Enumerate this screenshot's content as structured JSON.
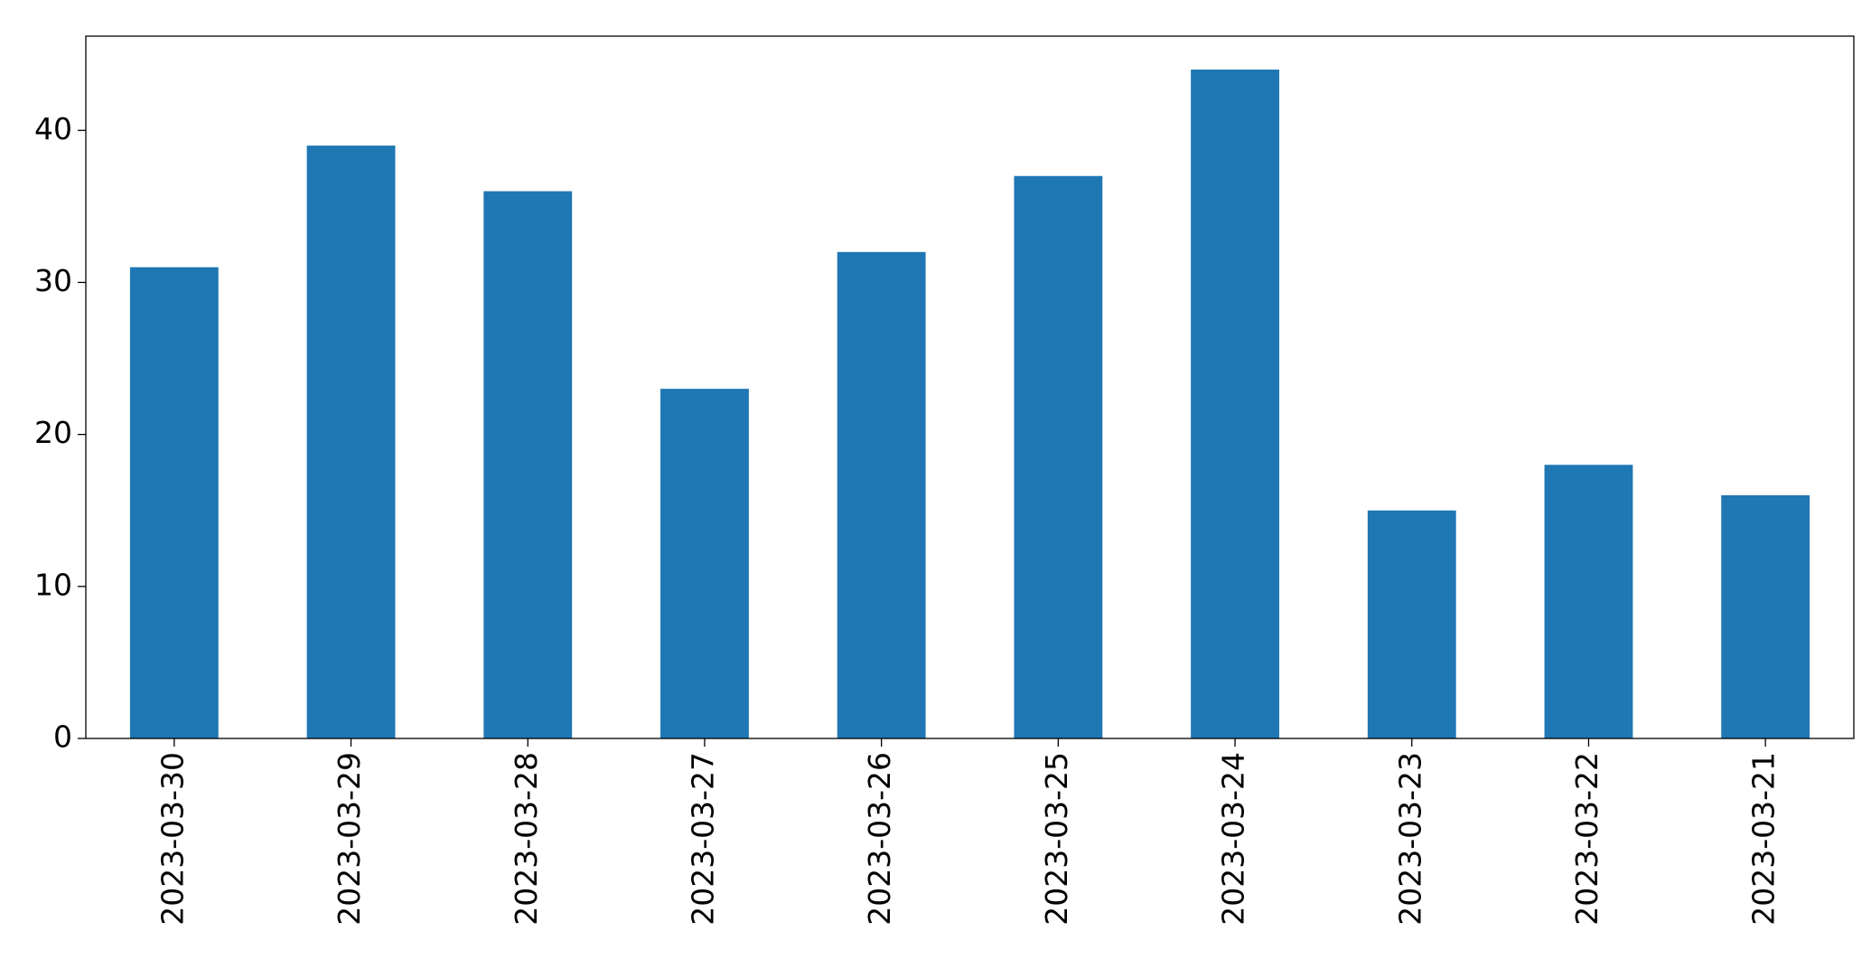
{
  "chart_data": {
    "type": "bar",
    "categories": [
      "2023-03-30",
      "2023-03-29",
      "2023-03-28",
      "2023-03-27",
      "2023-03-26",
      "2023-03-25",
      "2023-03-24",
      "2023-03-23",
      "2023-03-22",
      "2023-03-21"
    ],
    "values": [
      31,
      39,
      36,
      23,
      32,
      37,
      44,
      15,
      18,
      16
    ],
    "color": "#1f77b4",
    "ylim": [
      0,
      46.2
    ],
    "yticks": [
      0,
      10,
      20,
      30,
      40
    ],
    "grid": false
  }
}
